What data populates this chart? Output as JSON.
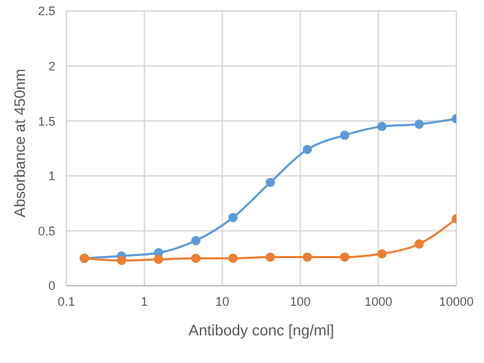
{
  "chart_data": {
    "type": "line",
    "xlabel": "Antibody conc [ng/ml]",
    "ylabel": "Absorbance at 450nm",
    "x": [
      0.17,
      0.51,
      1.52,
      4.57,
      13.7,
      41.2,
      123,
      370,
      1111,
      3333,
      10000
    ],
    "series": [
      {
        "color": "#5b9bd5",
        "values": [
          0.25,
          0.27,
          0.3,
          0.41,
          0.62,
          0.94,
          1.24,
          1.37,
          1.45,
          1.47,
          1.52
        ]
      },
      {
        "color": "#ed7d31",
        "values": [
          0.25,
          0.23,
          0.24,
          0.25,
          0.25,
          0.26,
          0.26,
          0.26,
          0.29,
          0.38,
          0.61
        ]
      }
    ],
    "log": "x",
    "xlim": [
      0.1,
      10000
    ],
    "xticks": [
      0.1,
      1,
      10,
      100,
      1000,
      10000
    ],
    "ylim": [
      0,
      2.5
    ],
    "yticks": [
      0,
      0.5,
      1,
      1.5,
      2,
      2.5
    ],
    "grid": true,
    "marker": "circle",
    "line_style": "solid",
    "legend": false
  }
}
